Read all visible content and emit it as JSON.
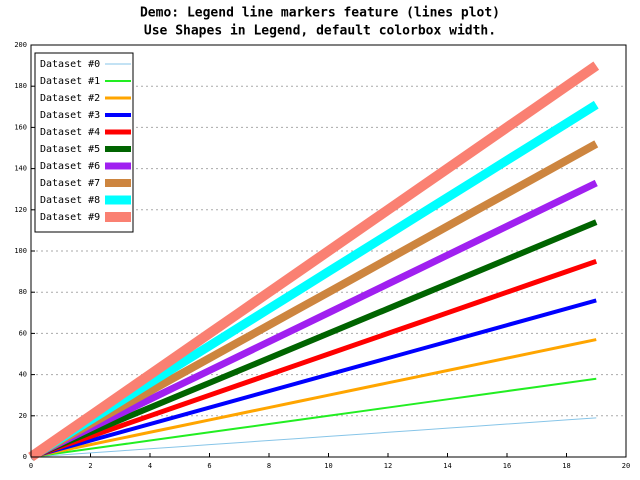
{
  "chart_data": {
    "type": "line",
    "title": "Demo: Legend line markers feature (lines plot)",
    "subtitle": "Use Shapes in Legend, default colorbox width.",
    "x": [
      0,
      1,
      2,
      3,
      4,
      5,
      6,
      7,
      8,
      9,
      10,
      11,
      12,
      13,
      14,
      15,
      16,
      17,
      18,
      19
    ],
    "series": [
      {
        "name": "Dataset #0",
        "color": "#87c5e8",
        "values": [
          0,
          1,
          2,
          3,
          4,
          5,
          6,
          7,
          8,
          9,
          10,
          11,
          12,
          13,
          14,
          15,
          16,
          17,
          18,
          19
        ]
      },
      {
        "name": "Dataset #1",
        "color": "#22ee22",
        "values": [
          0,
          2,
          4,
          6,
          8,
          10,
          12,
          14,
          16,
          18,
          20,
          22,
          24,
          26,
          28,
          30,
          32,
          34,
          36,
          38
        ]
      },
      {
        "name": "Dataset #2",
        "color": "#ffa500",
        "values": [
          0,
          3,
          6,
          9,
          12,
          15,
          18,
          21,
          24,
          27,
          30,
          33,
          36,
          39,
          42,
          45,
          48,
          51,
          54,
          57
        ]
      },
      {
        "name": "Dataset #3",
        "color": "#0000ff",
        "values": [
          0,
          4,
          8,
          12,
          16,
          20,
          24,
          28,
          32,
          36,
          40,
          44,
          48,
          52,
          56,
          60,
          64,
          68,
          72,
          76
        ]
      },
      {
        "name": "Dataset #4",
        "color": "#ff0000",
        "values": [
          0,
          5,
          10,
          15,
          20,
          25,
          30,
          35,
          40,
          45,
          50,
          55,
          60,
          65,
          70,
          75,
          80,
          85,
          90,
          95
        ]
      },
      {
        "name": "Dataset #5",
        "color": "#006400",
        "values": [
          0,
          6,
          12,
          18,
          24,
          30,
          36,
          42,
          48,
          54,
          60,
          66,
          72,
          78,
          84,
          90,
          96,
          102,
          108,
          114
        ]
      },
      {
        "name": "Dataset #6",
        "color": "#a020f0",
        "values": [
          0,
          7,
          14,
          21,
          28,
          35,
          42,
          49,
          56,
          63,
          70,
          77,
          84,
          91,
          98,
          105,
          112,
          119,
          126,
          133
        ]
      },
      {
        "name": "Dataset #7",
        "color": "#cd853f",
        "values": [
          0,
          8,
          16,
          24,
          32,
          40,
          48,
          56,
          64,
          72,
          80,
          88,
          96,
          104,
          112,
          120,
          128,
          136,
          144,
          152
        ]
      },
      {
        "name": "Dataset #8",
        "color": "#00ffff",
        "values": [
          0,
          9,
          18,
          27,
          36,
          45,
          54,
          63,
          72,
          81,
          90,
          99,
          108,
          117,
          126,
          135,
          144,
          153,
          162,
          171
        ]
      },
      {
        "name": "Dataset #9",
        "color": "#fa8072",
        "values": [
          0,
          10,
          20,
          30,
          40,
          50,
          60,
          70,
          80,
          90,
          100,
          110,
          120,
          130,
          140,
          150,
          160,
          170,
          180,
          190
        ]
      }
    ],
    "xlim": [
      0,
      20
    ],
    "xticks": [
      0,
      2,
      4,
      6,
      8,
      10,
      12,
      14,
      16,
      18,
      20
    ],
    "ylim": [
      0,
      200
    ],
    "yticks": [
      0,
      20,
      40,
      60,
      80,
      100,
      120,
      140,
      160,
      180,
      200
    ],
    "grid": true,
    "legend": "top-left"
  }
}
